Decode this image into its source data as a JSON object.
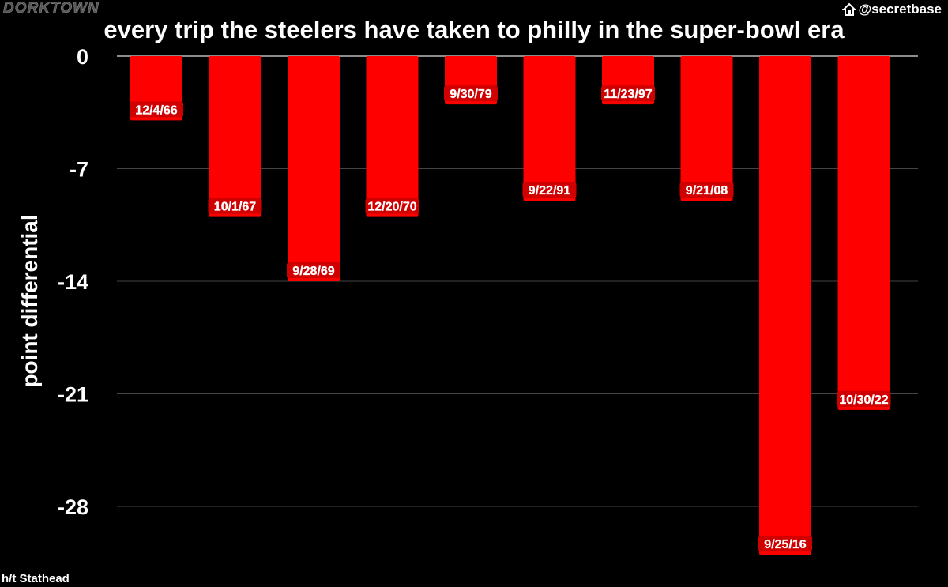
{
  "brand": "DORKTOWN",
  "handle": "@secretbase",
  "handle_icon": "home-icon",
  "credit": "h/t Stathead",
  "chart_data": {
    "type": "bar",
    "title": "every trip the steelers have taken to philly in the super-bowl era",
    "xlabel": "",
    "ylabel": "point differential",
    "categories": [
      "12/4/66",
      "10/1/67",
      "9/28/69",
      "12/20/70",
      "9/30/79",
      "9/22/91",
      "11/23/97",
      "9/21/08",
      "9/25/16",
      "10/30/22"
    ],
    "values": [
      -4,
      -10,
      -14,
      -10,
      -3,
      -9,
      -3,
      -9,
      -31,
      -22
    ],
    "yticks": [
      0,
      -7,
      -14,
      -21,
      -28
    ],
    "ylim": [
      -31,
      0
    ],
    "grid": true,
    "bar_color": "#ff0000",
    "background": "#000000"
  }
}
